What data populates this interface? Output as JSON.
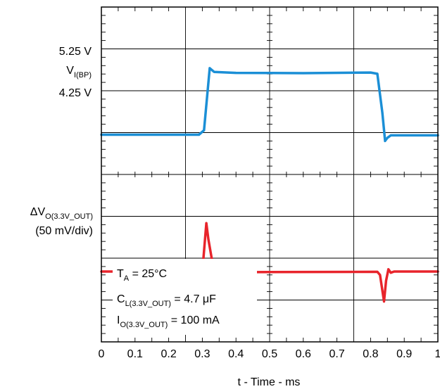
{
  "chart_data": {
    "type": "line",
    "xlabel": "t - Time - ms",
    "xlim": [
      0,
      1
    ],
    "x_ticks": [
      "0",
      "0.1",
      "0.2",
      "0.3",
      "0.4",
      "0.5",
      "0.6",
      "0.7",
      "0.8",
      "0.9",
      "1"
    ],
    "grid": true,
    "divisions": {
      "x": 4,
      "y": 8
    },
    "upper_labels": {
      "high": "5.25 V",
      "signal_main": "V",
      "signal_sub": "I(BP)",
      "low": "4.25 V"
    },
    "lower_labels": {
      "delta_main": "ΔV",
      "delta_sub": "O(3.3V_OUT)",
      "scale": "(50 mV/div)"
    },
    "annotations": {
      "ta_main": "T",
      "ta_sub": "A",
      "ta_rest": " = 25°C",
      "cl_main": "C",
      "cl_sub": "L(3.3V_OUT)",
      "cl_rest": " = 4.7 μF",
      "io_main": "I",
      "io_sub": "O(3.3V_OUT)",
      "io_rest": " = 100 mA"
    },
    "series": [
      {
        "color": "#1b8fd6",
        "points": [
          [
            0,
            4.25
          ],
          [
            0.29,
            4.25
          ],
          [
            0.305,
            4.32
          ],
          [
            0.322,
            5.31
          ],
          [
            0.335,
            5.25
          ],
          [
            0.4,
            5.235
          ],
          [
            0.6,
            5.23
          ],
          [
            0.8,
            5.24
          ],
          [
            0.82,
            5.22
          ],
          [
            0.835,
            4.6
          ],
          [
            0.843,
            4.15
          ],
          [
            0.85,
            4.2
          ],
          [
            0.86,
            4.24
          ],
          [
            1.0,
            4.24
          ]
        ]
      },
      {
        "color": "#e8242b",
        "points": [
          [
            0,
            0
          ],
          [
            0.3,
            0
          ],
          [
            0.312,
            2.1
          ],
          [
            0.318,
            1.4
          ],
          [
            0.33,
            0.4
          ],
          [
            0.345,
            0.05
          ],
          [
            0.36,
            -0.03
          ],
          [
            0.5,
            -0.02
          ],
          [
            0.82,
            -0.01
          ],
          [
            0.828,
            -0.15
          ],
          [
            0.84,
            -1.3
          ],
          [
            0.846,
            -0.4
          ],
          [
            0.853,
            0.1
          ],
          [
            0.86,
            -0.05
          ],
          [
            0.87,
            0
          ],
          [
            1.0,
            0
          ]
        ]
      }
    ]
  }
}
